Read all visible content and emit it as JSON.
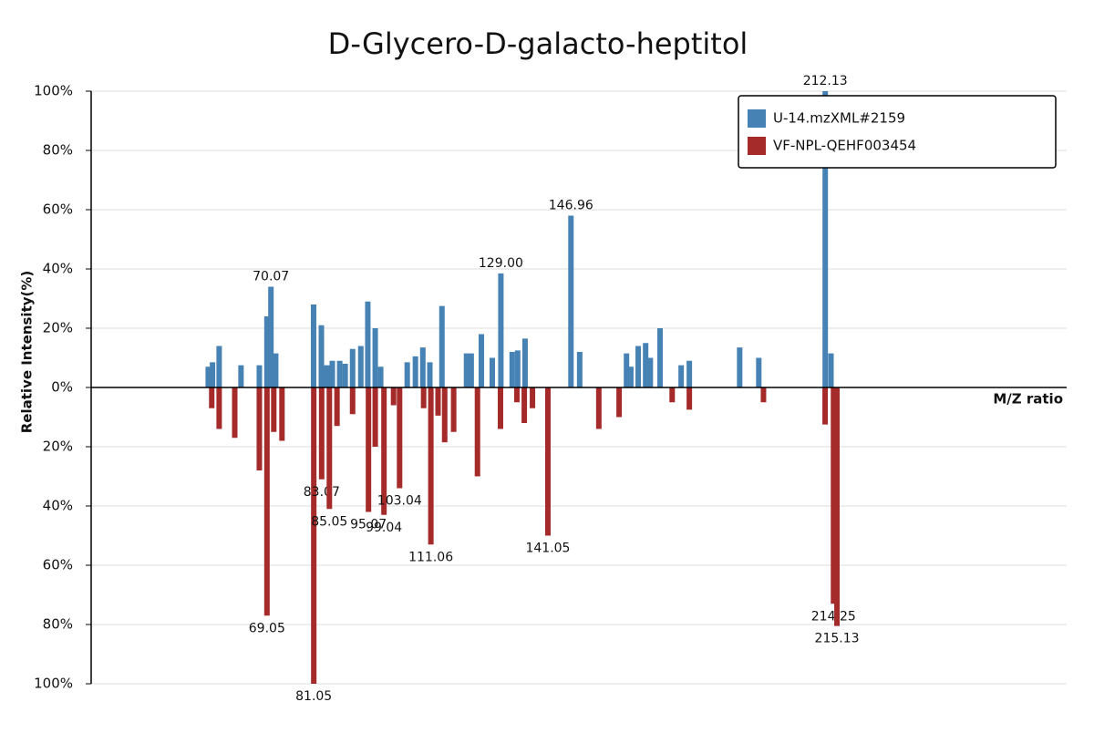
{
  "chart_data": {
    "type": "mirror-bar",
    "title": "D-Glycero-D-galacto-heptitol",
    "x_label": "M/Z ratio",
    "y_label": "Relative Intensity(%)",
    "xlim": [
      24,
      274
    ],
    "ylim": [
      -100,
      100
    ],
    "yticks": [
      {
        "value": -100,
        "label": "100%"
      },
      {
        "value": -80,
        "label": "80%"
      },
      {
        "value": -60,
        "label": "60%"
      },
      {
        "value": -40,
        "label": "40%"
      },
      {
        "value": -20,
        "label": "20%"
      },
      {
        "value": 0,
        "label": "0%"
      },
      {
        "value": 20,
        "label": "20%"
      },
      {
        "value": 40,
        "label": "40%"
      },
      {
        "value": 60,
        "label": "60%"
      },
      {
        "value": 80,
        "label": "80%"
      },
      {
        "value": 100,
        "label": "100%"
      }
    ],
    "grid": true,
    "legend": "top-right",
    "series": [
      {
        "name": "U-14.mzXML#2159",
        "color": "#4682b4",
        "x": [
          54.0,
          55.1,
          56.8,
          62.4,
          67.1,
          69.05,
          70.07,
          71.3,
          81.0,
          83.0,
          84.4,
          85.8,
          87.7,
          89.1,
          91.0,
          93.1,
          94.9,
          96.8,
          98.2,
          105.0,
          107.1,
          109.0,
          110.8,
          113.9,
          120.2,
          121.4,
          124.0,
          126.8,
          129.0,
          131.9,
          133.3,
          135.2,
          146.96,
          149.2,
          161.2,
          162.3,
          164.2,
          166.1,
          167.3,
          169.8,
          175.2,
          177.3,
          190.2,
          195.1,
          212.13,
          213.6
        ],
        "values": [
          7,
          8.5,
          14,
          7.5,
          7.5,
          24,
          34,
          11.5,
          28,
          21,
          7.5,
          9,
          9,
          8,
          13,
          14,
          29,
          20,
          7,
          8.5,
          10.5,
          13.5,
          8.5,
          27.5,
          11.5,
          11.5,
          18,
          10,
          38.5,
          12,
          12.5,
          16.5,
          58,
          12,
          11.5,
          7,
          14,
          15,
          10,
          20,
          7.5,
          9,
          13.5,
          10,
          100,
          11.5
        ],
        "peak_labels": [
          null,
          null,
          null,
          null,
          null,
          null,
          "70.07",
          null,
          null,
          null,
          null,
          null,
          null,
          null,
          null,
          null,
          null,
          null,
          null,
          null,
          null,
          null,
          null,
          null,
          null,
          null,
          null,
          null,
          "129.00",
          null,
          null,
          null,
          "146.96",
          null,
          null,
          null,
          null,
          null,
          null,
          null,
          null,
          null,
          null,
          null,
          "212.13",
          null
        ]
      },
      {
        "name": "VF-NPL-QEHF003454",
        "color": "#a52a2a",
        "x": [
          54.9,
          56.8,
          60.8,
          67.1,
          69.05,
          70.8,
          72.9,
          81.05,
          83.07,
          85.05,
          87.0,
          91.0,
          95.07,
          96.8,
          99.04,
          101.5,
          103.04,
          109.2,
          111.06,
          112.9,
          114.6,
          116.9,
          123.0,
          128.9,
          133.1,
          135.0,
          137.1,
          141.05,
          154.1,
          159.3,
          172.9,
          177.3,
          196.3,
          212.1,
          214.25,
          215.13
        ],
        "values": [
          -7,
          -14,
          -17,
          -28,
          -77,
          -15,
          -18,
          -100,
          -31,
          -41,
          -13,
          -9,
          -42,
          -20,
          -43,
          -6,
          -34,
          -7,
          -53,
          -9.5,
          -18.5,
          -15,
          -30,
          -14,
          -5,
          -12,
          -7,
          -50,
          -14,
          -10,
          -5,
          -7.5,
          -5,
          -12.5,
          -73,
          -80.5
        ],
        "peak_labels": [
          null,
          null,
          null,
          null,
          "69.05",
          null,
          null,
          "81.05",
          "83.07",
          "85.05",
          null,
          null,
          "95.07",
          null,
          "99.04",
          null,
          "103.04",
          null,
          "111.06",
          null,
          null,
          null,
          null,
          null,
          null,
          null,
          null,
          "141.05",
          null,
          null,
          null,
          null,
          null,
          null,
          "214.25",
          "215.13"
        ]
      }
    ]
  }
}
